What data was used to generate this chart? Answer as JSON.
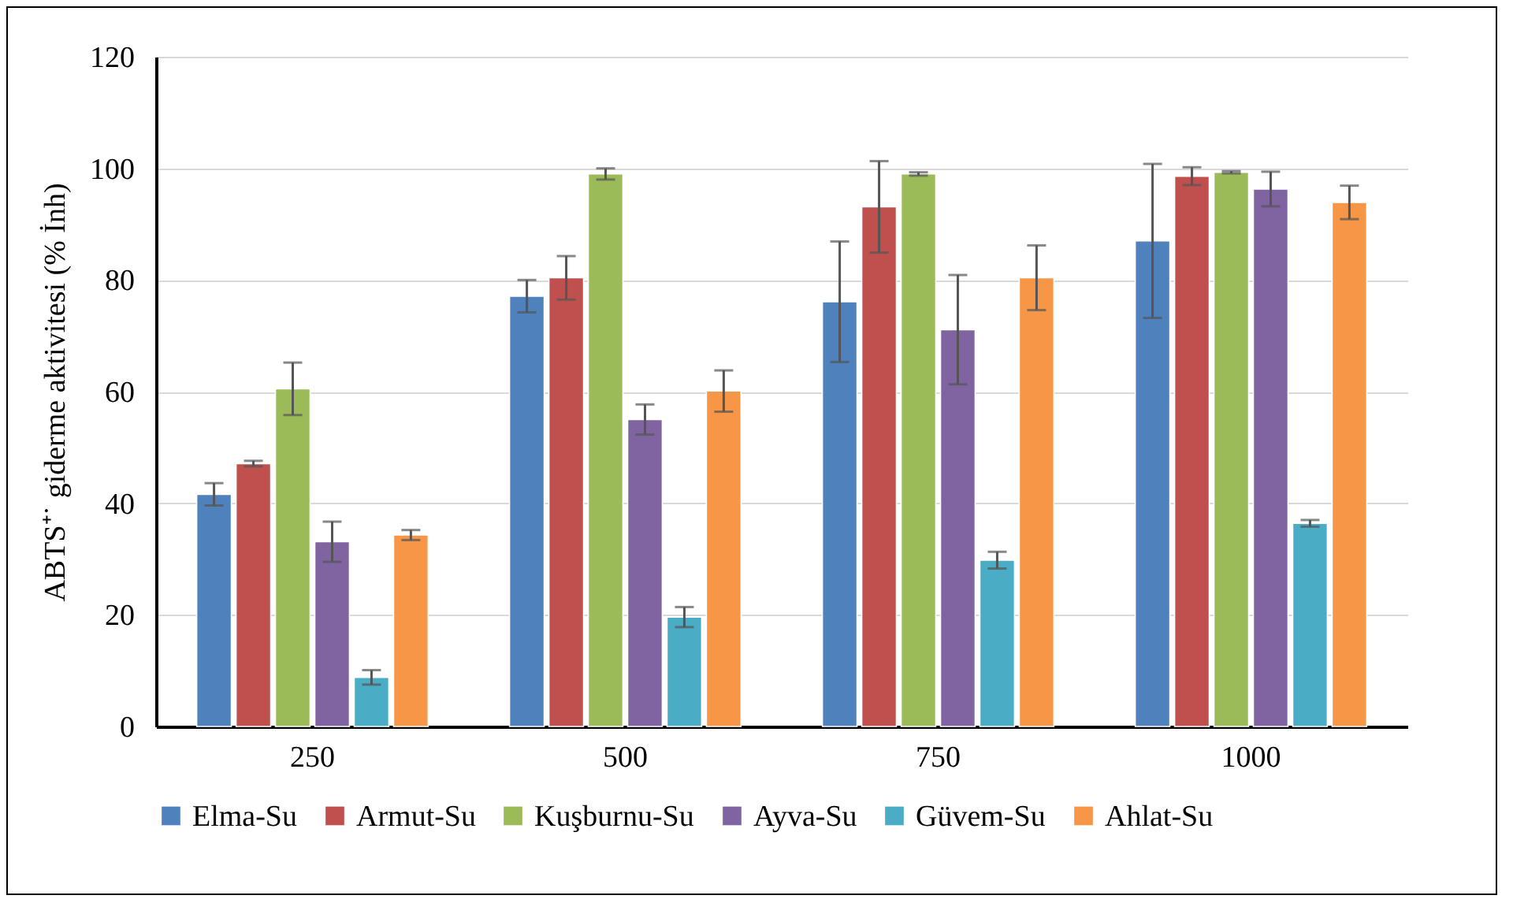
{
  "chart_data": {
    "type": "bar",
    "ylabel": "ABTS⁺˙ giderme aktivitesi (% İnh)",
    "categories": [
      "250",
      "500",
      "750",
      "1000"
    ],
    "series": [
      {
        "name": "Elma-Su",
        "color": "#4f81bd",
        "values": [
          41.6,
          77.1,
          76.1,
          87.0
        ],
        "errors": [
          2.0,
          2.9,
          10.8,
          13.8
        ]
      },
      {
        "name": "Armut-Su",
        "color": "#c0504d",
        "values": [
          47.1,
          80.4,
          93.1,
          98.6
        ],
        "errors": [
          0.5,
          3.9,
          8.2,
          1.6
        ]
      },
      {
        "name": "Kuşburnu-Su",
        "color": "#9bbb59",
        "values": [
          60.5,
          99.0,
          99.0,
          99.3
        ],
        "errors": [
          4.7,
          1.0,
          0.3,
          0.2
        ]
      },
      {
        "name": "Ayva-Su",
        "color": "#8064a2",
        "values": [
          33.1,
          55.0,
          71.1,
          96.3
        ],
        "errors": [
          3.6,
          2.7,
          9.8,
          3.1
        ]
      },
      {
        "name": "Güvem-Su",
        "color": "#4bacc6",
        "values": [
          8.8,
          19.6,
          29.8,
          36.4
        ],
        "errors": [
          1.3,
          1.8,
          1.5,
          0.6
        ]
      },
      {
        "name": "Ahlat-Su",
        "color": "#f79646",
        "values": [
          34.3,
          60.1,
          80.4,
          93.9
        ],
        "errors": [
          0.9,
          3.7,
          5.8,
          3.0
        ]
      }
    ],
    "ylim": [
      0,
      120
    ],
    "yticks": [
      0,
      20,
      40,
      60,
      80,
      100,
      120
    ],
    "grid": "y",
    "legend": "bottom"
  }
}
